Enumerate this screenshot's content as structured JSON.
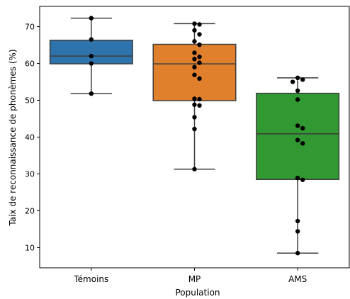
{
  "chart_data": {
    "type": "box",
    "xlabel": "Population",
    "ylabel": "Taix de reconnaissance de phonèmes (%)",
    "categories": [
      "Témoins",
      "MP",
      "AMS"
    ],
    "ylim": [
      4.5,
      75.5
    ],
    "yticks": [
      10,
      20,
      30,
      40,
      50,
      60,
      70
    ],
    "grid": false,
    "boxes": [
      {
        "category": "Témoins",
        "color": "#2f73ad",
        "whisker_low": 51.8,
        "q1": 59.9,
        "median": 62.0,
        "q3": 66.3,
        "whisker_high": 72.3,
        "points": [
          72.3,
          66.5,
          62.0,
          60.0,
          51.8
        ]
      },
      {
        "category": "MP",
        "color": "#e0802d",
        "whisker_low": 31.3,
        "q1": 49.9,
        "median": 59.9,
        "q3": 65.2,
        "whisker_high": 70.8,
        "points": [
          70.8,
          70.6,
          69.0,
          67.9,
          66.0,
          65.1,
          62.9,
          61.8,
          61.2,
          60.2,
          59.0,
          56.9,
          55.9,
          50.4,
          50.3,
          48.8,
          48.6,
          45.4,
          42.2,
          31.3
        ]
      },
      {
        "category": "AMS",
        "color": "#329932",
        "whisker_low": 8.5,
        "q1": 28.5,
        "median": 40.9,
        "q3": 51.9,
        "whisker_high": 56.1,
        "points": [
          56.1,
          55.6,
          55.0,
          52.6,
          50.2,
          43.1,
          42.4,
          39.2,
          38.3,
          28.9,
          28.4,
          17.2,
          14.4,
          8.5
        ]
      }
    ]
  }
}
